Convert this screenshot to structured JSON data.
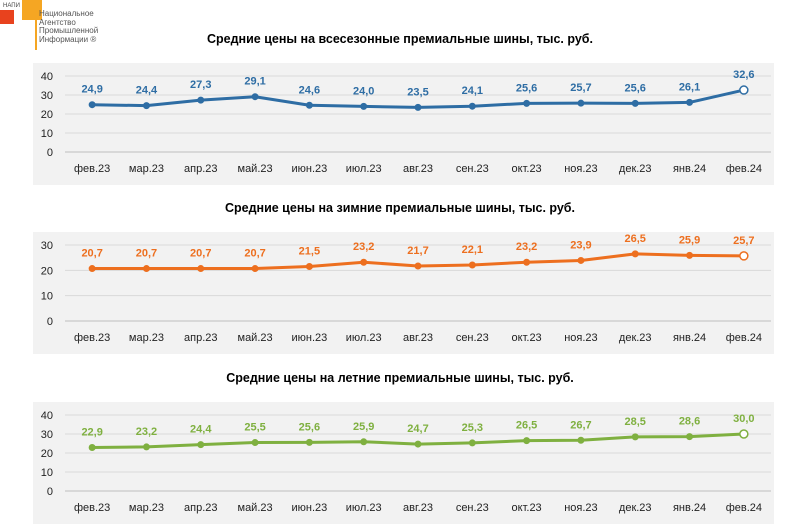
{
  "logo": {
    "mark": "НАПИ",
    "text": "Национальное\nАгентство\nПромышленной\nИнформации ®"
  },
  "chart_data": [
    {
      "type": "line",
      "title": "Средние цены на всесезонные премиальные шины, тыс. руб.",
      "categories": [
        "фев.23",
        "мар.23",
        "апр.23",
        "май.23",
        "июн.23",
        "июл.23",
        "авг.23",
        "сен.23",
        "окт.23",
        "ноя.23",
        "дек.23",
        "янв.24",
        "фев.24"
      ],
      "values": [
        24.9,
        24.4,
        27.3,
        29.1,
        24.6,
        24.0,
        23.5,
        24.1,
        25.6,
        25.7,
        25.6,
        26.1,
        32.6
      ],
      "labels": [
        "24,9",
        "24,4",
        "27,3",
        "29,1",
        "24,6",
        "24,0",
        "23,5",
        "24,1",
        "25,6",
        "25,7",
        "25,6",
        "26,1",
        "32,6"
      ],
      "ylim": [
        0,
        40
      ],
      "yticks": [
        "0",
        "10",
        "20",
        "30",
        "40"
      ],
      "grid": true,
      "color": "#2e6da4"
    },
    {
      "type": "line",
      "title": "Средние цены на зимние премиальные шины, тыс. руб.",
      "categories": [
        "фев.23",
        "мар.23",
        "апр.23",
        "май.23",
        "июн.23",
        "июл.23",
        "авг.23",
        "сен.23",
        "окт.23",
        "ноя.23",
        "дек.23",
        "янв.24",
        "фев.24"
      ],
      "values": [
        20.7,
        20.7,
        20.7,
        20.7,
        21.5,
        23.2,
        21.7,
        22.1,
        23.2,
        23.9,
        26.5,
        25.9,
        25.7
      ],
      "labels": [
        "20,7",
        "20,7",
        "20,7",
        "20,7",
        "21,5",
        "23,2",
        "21,7",
        "22,1",
        "23,2",
        "23,9",
        "26,5",
        "25,9",
        "25,7"
      ],
      "ylim": [
        0,
        30
      ],
      "yticks": [
        "0",
        "10",
        "20",
        "30"
      ],
      "grid": true,
      "color": "#ed6f1f"
    },
    {
      "type": "line",
      "title": "Средние цены на летние премиальные шины, тыс. руб.",
      "categories": [
        "фев.23",
        "мар.23",
        "апр.23",
        "май.23",
        "июн.23",
        "июл.23",
        "авг.23",
        "сен.23",
        "окт.23",
        "ноя.23",
        "дек.23",
        "янв.24",
        "фев.24"
      ],
      "values": [
        22.9,
        23.2,
        24.4,
        25.5,
        25.6,
        25.9,
        24.7,
        25.3,
        26.5,
        26.7,
        28.5,
        28.6,
        30.0
      ],
      "labels": [
        "22,9",
        "23,2",
        "24,4",
        "25,5",
        "25,6",
        "25,9",
        "24,7",
        "25,3",
        "26,5",
        "26,7",
        "28,5",
        "28,6",
        "30,0"
      ],
      "ylim": [
        0,
        40
      ],
      "yticks": [
        "0",
        "10",
        "20",
        "30",
        "40"
      ],
      "grid": true,
      "color": "#7fb040"
    }
  ]
}
